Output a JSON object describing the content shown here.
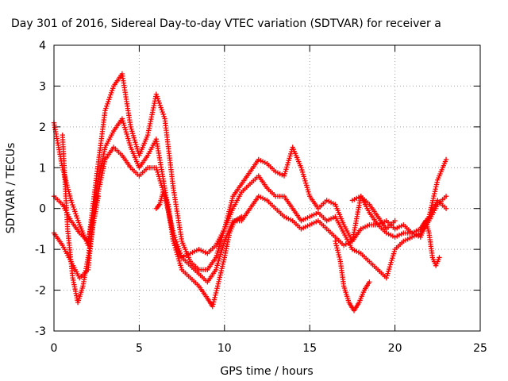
{
  "chart_data": {
    "type": "scatter",
    "title": "Day 301 of 2016, Sidereal Day-to-day VTEC variation (SDTVAR) for receiver a",
    "xlabel": "GPS time / hours",
    "ylabel": "SDTVAR / TECUs",
    "xlim": [
      0,
      25
    ],
    "ylim": [
      -3,
      4
    ],
    "xticks": [
      0,
      5,
      10,
      15,
      20,
      25
    ],
    "yticks": [
      -3,
      -2,
      -1,
      0,
      1,
      2,
      3,
      4
    ],
    "grid": true,
    "marker": "plus",
    "colors": {
      "series": "#ff0000",
      "grid": "#a0a0a0",
      "axis": "#000000"
    },
    "series": [
      {
        "x": [
          0,
          0.5,
          1,
          1.5,
          2,
          2.5,
          3,
          3.5,
          4,
          4.5,
          5,
          5.5,
          6,
          6.5,
          7,
          7.5,
          8,
          8.5,
          9,
          9.5,
          10,
          10.5,
          11,
          11.5,
          12,
          12.5,
          13,
          13.5,
          14,
          14.5,
          15,
          15.5,
          16,
          16.5,
          17,
          17.5,
          18,
          18.5,
          19,
          19.5,
          20,
          20.5,
          21,
          21.5,
          22,
          22.5,
          23
        ],
        "y": [
          0.3,
          0.1,
          -0.3,
          -0.6,
          -0.8,
          0.2,
          1.2,
          1.5,
          1.3,
          1,
          0.8,
          1,
          1,
          0.3,
          -0.6,
          -1.2,
          -1.4,
          -1.6,
          -1.8,
          -1.5,
          -0.8,
          -0.3,
          -0.3,
          0,
          0.3,
          0.2,
          0,
          -0.2,
          -0.3,
          -0.5,
          -0.4,
          -0.3,
          -0.5,
          -0.7,
          -0.9,
          -0.8,
          -0.5,
          -0.4,
          -0.4,
          -0.6,
          -0.7,
          -0.6,
          -0.6,
          -0.5,
          -0.2,
          0.2,
          0
        ]
      },
      {
        "x": [
          0,
          0.5,
          1,
          1.5,
          2,
          2.5,
          3,
          3.5,
          4,
          4.5,
          5,
          5.5,
          6,
          6.5,
          7,
          7.5,
          8,
          8.5,
          9,
          9.5,
          10,
          10.5,
          11,
          11.5,
          12,
          12.5,
          13,
          13.5,
          14,
          14.5,
          15,
          15.5,
          16,
          16.5,
          17,
          17.5,
          18,
          18.5,
          19,
          19.5,
          20,
          20.5,
          21,
          21.5,
          22,
          22.5,
          23
        ],
        "y": [
          -0.6,
          -0.9,
          -1.3,
          -1.7,
          -1.5,
          0.5,
          1.5,
          1.9,
          2.2,
          1.5,
          1,
          1.3,
          1.7,
          0.5,
          -0.8,
          -1.2,
          -1.1,
          -1,
          -1.1,
          -0.9,
          -0.5,
          0,
          0.4,
          0.6,
          0.8,
          0.5,
          0.3,
          0.3,
          0,
          -0.3,
          -0.2,
          -0.1,
          -0.3,
          -0.2,
          -0.6,
          -1,
          -1.1,
          -1.3,
          -1.5,
          -1.7,
          -1,
          -0.8,
          -0.7,
          -0.6,
          -0.3,
          0.1,
          0.3
        ]
      },
      {
        "x": [
          0,
          0.5,
          1,
          1.5,
          2,
          2.5,
          3,
          3.5,
          4,
          4.5,
          5,
          5.5,
          6,
          6.5,
          7,
          7.5,
          8,
          8.5,
          9,
          9.5,
          10,
          10.5,
          11,
          11.5,
          12,
          12.5,
          13,
          13.5,
          14,
          14.5,
          15,
          15.5,
          16,
          16.5,
          17,
          17.5,
          18,
          18.5,
          19,
          19.5,
          20,
          20.5,
          21,
          21.5,
          22,
          22.5,
          23
        ],
        "y": [
          2.1,
          1,
          0.2,
          -0.4,
          -0.9,
          0.8,
          2.4,
          3,
          3.3,
          2,
          1.3,
          1.8,
          2.8,
          2.2,
          0.5,
          -0.8,
          -1.3,
          -1.5,
          -1.5,
          -1.2,
          -0.5,
          0.3,
          0.6,
          0.9,
          1.2,
          1.1,
          0.9,
          0.8,
          1.5,
          1,
          0.3,
          0,
          0.2,
          0.1,
          -0.4,
          -0.8,
          0.3,
          -0.1,
          -0.4,
          -0.3,
          -0.5,
          -0.4,
          -0.6,
          -0.7,
          -0.2,
          0.7,
          1.2
        ]
      },
      {
        "x": [
          0.5,
          0.8,
          1.1,
          1.4,
          1.7,
          2,
          2.3,
          2.6
        ],
        "y": [
          1.8,
          -0.5,
          -1.7,
          -2.3,
          -1.9,
          -1.2,
          -0.4,
          0.3
        ]
      },
      {
        "x": [
          6,
          6.2,
          6.4,
          6.7,
          7,
          7.5,
          8,
          8.5,
          9,
          9.3,
          9.6,
          10,
          10.3,
          10.6,
          11
        ],
        "y": [
          0,
          0.1,
          0.4,
          0.1,
          -0.8,
          -1.5,
          -1.7,
          -1.9,
          -2.2,
          -2.4,
          -1.9,
          -1.2,
          -0.6,
          -0.3,
          -0.2
        ]
      },
      {
        "x": [
          16.5,
          16.8,
          17,
          17.3,
          17.6,
          17.9,
          18.2,
          18.5
        ],
        "y": [
          -0.8,
          -1.3,
          -1.9,
          -2.3,
          -2.5,
          -2.3,
          -2,
          -1.8
        ]
      },
      {
        "x": [
          21.5,
          21.8,
          22,
          22.2,
          22.4,
          22.6
        ],
        "y": [
          -0.5,
          -0.3,
          -0.6,
          -1.2,
          -1.4,
          -1.2
        ]
      },
      {
        "x": [
          17.5,
          18,
          18.5,
          19,
          19.5,
          20
        ],
        "y": [
          0.2,
          0.3,
          0.1,
          -0.2,
          -0.5,
          -0.3
        ]
      }
    ]
  }
}
